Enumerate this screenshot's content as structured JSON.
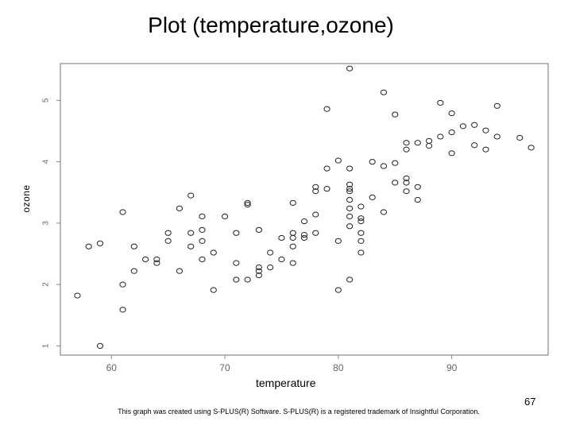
{
  "slide": {
    "title": "Plot (temperature,ozone)",
    "page_number": "67",
    "footnote": "This graph was created using S-PLUS(R) Software. S-PLUS(R) is a registered trademark of Insightful Corporation."
  },
  "chart_data": {
    "type": "scatter",
    "title": "Plot (temperature,ozone)",
    "xlabel": "temperature",
    "ylabel": "ozone",
    "xlim": [
      55.5,
      98.5
    ],
    "ylim": [
      0.85,
      5.6
    ],
    "xticks": [
      60,
      70,
      80,
      90
    ],
    "yticks": [
      1,
      2,
      3,
      4,
      5
    ],
    "xtick_labels": [
      "60",
      "70",
      "80",
      "90"
    ],
    "ytick_labels": [
      "1",
      "2",
      "3",
      "4",
      "5"
    ],
    "grid": false,
    "legend": "none",
    "marker": "open-circle",
    "colors": {
      "marker": "#222222",
      "axis": "#888888",
      "tick_label": "#666666"
    },
    "series": [
      {
        "points": [
          [
            57,
            1.82
          ],
          [
            58,
            2.62
          ],
          [
            59,
            2.67
          ],
          [
            59,
            1.0
          ],
          [
            61,
            3.18
          ],
          [
            61,
            2.0
          ],
          [
            61,
            1.59
          ],
          [
            62,
            2.62
          ],
          [
            62,
            2.22
          ],
          [
            63,
            2.41
          ],
          [
            64,
            2.41
          ],
          [
            64,
            2.35
          ],
          [
            65,
            2.84
          ],
          [
            65,
            2.71
          ],
          [
            66,
            3.24
          ],
          [
            66,
            2.22
          ],
          [
            67,
            3.45
          ],
          [
            67,
            2.84
          ],
          [
            67,
            2.62
          ],
          [
            68,
            3.11
          ],
          [
            68,
            2.89
          ],
          [
            68,
            2.71
          ],
          [
            68,
            2.41
          ],
          [
            69,
            2.52
          ],
          [
            69,
            1.91
          ],
          [
            70,
            3.11
          ],
          [
            71,
            2.84
          ],
          [
            71,
            2.35
          ],
          [
            71,
            2.08
          ],
          [
            72,
            3.33
          ],
          [
            72,
            3.3
          ],
          [
            72,
            2.08
          ],
          [
            73,
            2.89
          ],
          [
            73,
            2.28
          ],
          [
            73,
            2.22
          ],
          [
            73,
            2.15
          ],
          [
            74,
            2.52
          ],
          [
            74,
            2.28
          ],
          [
            75,
            2.76
          ],
          [
            75,
            2.41
          ],
          [
            76,
            3.33
          ],
          [
            76,
            2.84
          ],
          [
            76,
            2.76
          ],
          [
            76,
            2.62
          ],
          [
            76,
            2.35
          ],
          [
            77,
            3.03
          ],
          [
            77,
            2.81
          ],
          [
            77,
            2.76
          ],
          [
            78,
            3.59
          ],
          [
            78,
            3.52
          ],
          [
            78,
            3.14
          ],
          [
            78,
            2.84
          ],
          [
            79,
            4.86
          ],
          [
            79,
            3.89
          ],
          [
            79,
            3.56
          ],
          [
            80,
            4.02
          ],
          [
            80,
            2.71
          ],
          [
            80,
            1.91
          ],
          [
            81,
            5.52
          ],
          [
            81,
            3.89
          ],
          [
            81,
            3.63
          ],
          [
            81,
            3.56
          ],
          [
            81,
            3.52
          ],
          [
            81,
            3.38
          ],
          [
            81,
            3.24
          ],
          [
            81,
            3.11
          ],
          [
            81,
            2.95
          ],
          [
            81,
            2.08
          ],
          [
            82,
            3.27
          ],
          [
            82,
            3.08
          ],
          [
            82,
            3.03
          ],
          [
            82,
            2.84
          ],
          [
            82,
            2.71
          ],
          [
            82,
            2.52
          ],
          [
            83,
            4.0
          ],
          [
            83,
            3.42
          ],
          [
            84,
            5.13
          ],
          [
            84,
            3.93
          ],
          [
            84,
            3.18
          ],
          [
            85,
            4.77
          ],
          [
            85,
            3.98
          ],
          [
            85,
            3.66
          ],
          [
            86,
            4.31
          ],
          [
            86,
            4.2
          ],
          [
            86,
            3.73
          ],
          [
            86,
            3.66
          ],
          [
            86,
            3.52
          ],
          [
            87,
            4.31
          ],
          [
            87,
            3.59
          ],
          [
            87,
            3.38
          ],
          [
            88,
            4.34
          ],
          [
            88,
            4.26
          ],
          [
            89,
            4.96
          ],
          [
            89,
            4.41
          ],
          [
            90,
            4.79
          ],
          [
            90,
            4.48
          ],
          [
            90,
            4.14
          ],
          [
            91,
            4.58
          ],
          [
            92,
            4.6
          ],
          [
            92,
            4.27
          ],
          [
            93,
            4.51
          ],
          [
            93,
            4.2
          ],
          [
            94,
            4.91
          ],
          [
            94,
            4.41
          ],
          [
            96,
            4.39
          ],
          [
            97,
            4.23
          ]
        ]
      }
    ]
  }
}
